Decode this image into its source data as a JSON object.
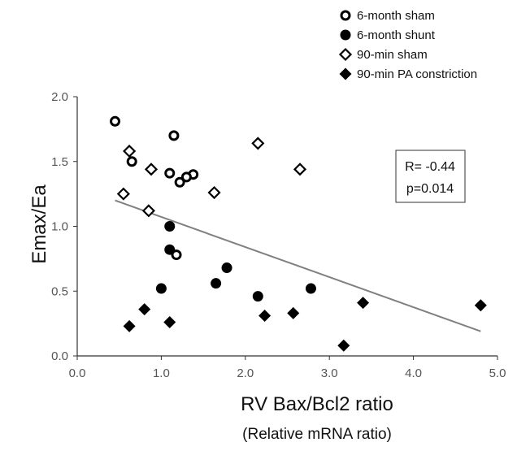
{
  "chart_data": {
    "type": "scatter",
    "xlabel": "RV Bax/Bcl2 ratio",
    "xlabel_sub": "(Relative mRNA ratio)",
    "ylabel": "Emax/Ea",
    "xlim": [
      0,
      5
    ],
    "ylim": [
      0,
      2
    ],
    "x_ticks": [
      "0.0",
      "1.0",
      "2.0",
      "3.0",
      "4.0",
      "5.0"
    ],
    "y_ticks": [
      "0.0",
      "0.5",
      "1.0",
      "1.5",
      "2.0"
    ],
    "grid": false,
    "legend_position": "top-right",
    "stats": {
      "r_label": "R= -0.44",
      "p_label": "p=0.014"
    },
    "trendline": {
      "x": [
        0.45,
        4.8
      ],
      "y": [
        1.2,
        0.19
      ],
      "color": "#808080"
    },
    "series": [
      {
        "name": "6-month sham",
        "marker": "open-circle",
        "points": [
          {
            "x": 0.45,
            "y": 1.81
          },
          {
            "x": 1.15,
            "y": 1.7
          },
          {
            "x": 0.65,
            "y": 1.5
          },
          {
            "x": 1.1,
            "y": 1.41
          },
          {
            "x": 1.38,
            "y": 1.4
          },
          {
            "x": 1.3,
            "y": 1.38
          },
          {
            "x": 1.22,
            "y": 1.34
          },
          {
            "x": 1.18,
            "y": 0.78
          }
        ]
      },
      {
        "name": "6-month shunt",
        "marker": "filled-circle",
        "points": [
          {
            "x": 1.1,
            "y": 1.0
          },
          {
            "x": 1.1,
            "y": 0.82
          },
          {
            "x": 1.78,
            "y": 0.68
          },
          {
            "x": 1.65,
            "y": 0.56
          },
          {
            "x": 1.0,
            "y": 0.52
          },
          {
            "x": 2.15,
            "y": 0.46
          },
          {
            "x": 2.78,
            "y": 0.52
          }
        ]
      },
      {
        "name": "90-min sham",
        "marker": "open-diamond",
        "points": [
          {
            "x": 0.62,
            "y": 1.58
          },
          {
            "x": 0.88,
            "y": 1.44
          },
          {
            "x": 0.55,
            "y": 1.25
          },
          {
            "x": 0.85,
            "y": 1.12
          },
          {
            "x": 1.63,
            "y": 1.26
          },
          {
            "x": 2.15,
            "y": 1.64
          },
          {
            "x": 2.65,
            "y": 1.44
          }
        ]
      },
      {
        "name": "90-min PA constriction",
        "marker": "filled-diamond",
        "points": [
          {
            "x": 0.62,
            "y": 0.23
          },
          {
            "x": 0.8,
            "y": 0.36
          },
          {
            "x": 1.1,
            "y": 0.26
          },
          {
            "x": 2.23,
            "y": 0.31
          },
          {
            "x": 2.57,
            "y": 0.33
          },
          {
            "x": 3.17,
            "y": 0.08
          },
          {
            "x": 3.4,
            "y": 0.41
          },
          {
            "x": 4.8,
            "y": 0.39
          }
        ]
      }
    ]
  }
}
